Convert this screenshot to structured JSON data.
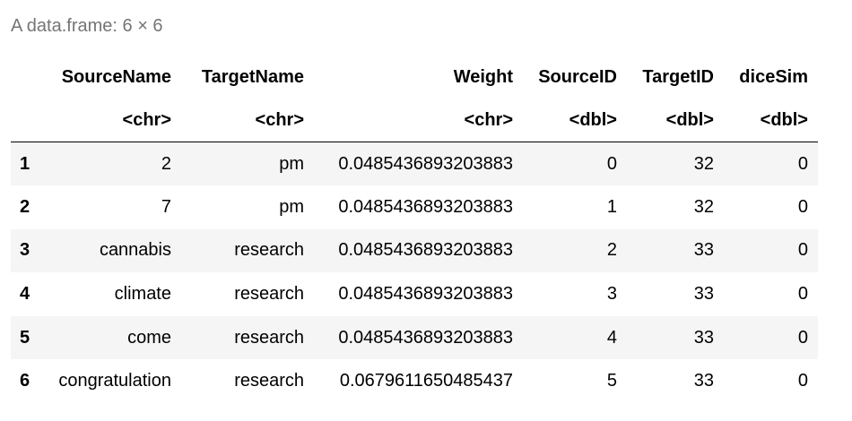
{
  "caption": "A data.frame: 6 × 6",
  "columns": [
    {
      "name": "SourceName",
      "type": "<chr>"
    },
    {
      "name": "TargetName",
      "type": "<chr>"
    },
    {
      "name": "Weight",
      "type": "<chr>"
    },
    {
      "name": "SourceID",
      "type": "<dbl>"
    },
    {
      "name": "TargetID",
      "type": "<dbl>"
    },
    {
      "name": "diceSim",
      "type": "<dbl>"
    }
  ],
  "rows": [
    {
      "index": "1",
      "SourceName": "2",
      "TargetName": "pm",
      "Weight": "0.0485436893203883",
      "SourceID": "0",
      "TargetID": "32",
      "diceSim": "0"
    },
    {
      "index": "2",
      "SourceName": "7",
      "TargetName": "pm",
      "Weight": "0.0485436893203883",
      "SourceID": "1",
      "TargetID": "32",
      "diceSim": "0"
    },
    {
      "index": "3",
      "SourceName": "cannabis",
      "TargetName": "research",
      "Weight": "0.0485436893203883",
      "SourceID": "2",
      "TargetID": "33",
      "diceSim": "0"
    },
    {
      "index": "4",
      "SourceName": "climate",
      "TargetName": "research",
      "Weight": "0.0485436893203883",
      "SourceID": "3",
      "TargetID": "33",
      "diceSim": "0"
    },
    {
      "index": "5",
      "SourceName": "come",
      "TargetName": "research",
      "Weight": "0.0485436893203883",
      "SourceID": "4",
      "TargetID": "33",
      "diceSim": "0"
    },
    {
      "index": "6",
      "SourceName": "congratulation",
      "TargetName": "research",
      "Weight": "0.0679611650485437",
      "SourceID": "5",
      "TargetID": "33",
      "diceSim": "0"
    }
  ]
}
